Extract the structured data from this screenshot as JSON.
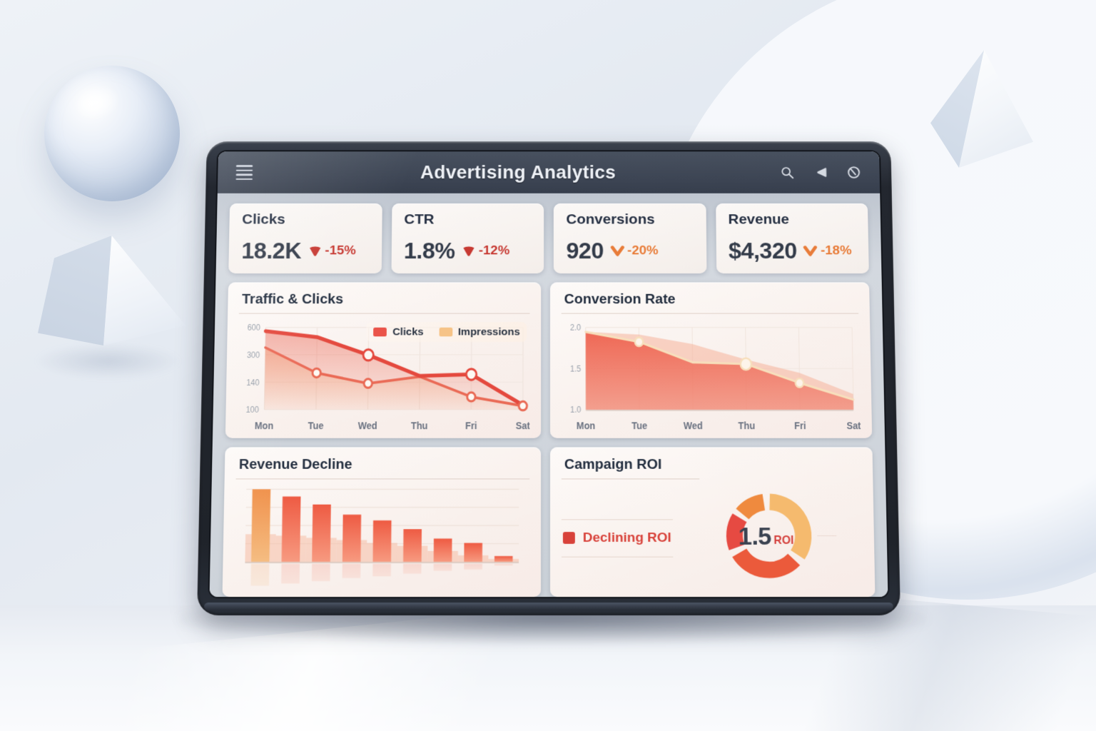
{
  "header": {
    "title": "Advertising Analytics",
    "icons": [
      "menu",
      "search",
      "notifications",
      "account"
    ]
  },
  "kpis": [
    {
      "label": "Clicks",
      "value": "18.2K",
      "delta": "-15%",
      "delta_color": "#c73a33",
      "arrow_style": "triangle"
    },
    {
      "label": "CTR",
      "value": "1.8%",
      "delta": "-12%",
      "delta_color": "#c73a33",
      "arrow_style": "triangle"
    },
    {
      "label": "Conversions",
      "value": "920",
      "delta": "-20%",
      "delta_color": "#e87c39",
      "arrow_style": "chevron"
    },
    {
      "label": "Revenue",
      "value": "$4,320",
      "delta": "-18%",
      "delta_color": "#e87c39",
      "arrow_style": "chevron"
    }
  ],
  "chart_data": [
    {
      "type": "line",
      "title": "Traffic & Clicks",
      "x": [
        "Mon",
        "Tue",
        "Wed",
        "Thu",
        "Fri",
        "Sat"
      ],
      "yticks": [
        "600",
        "300",
        "140",
        "100"
      ],
      "grid": true,
      "legend_position": "top-right",
      "series": [
        {
          "name": "Clicks",
          "color": "#e4493e",
          "swatch": "#ea5349",
          "fill": "#ec6a58",
          "values": [
            600,
            560,
            440,
            300,
            310,
            105
          ],
          "markers": [
            2,
            4
          ]
        },
        {
          "name": "Impressions",
          "color": "#e96a55",
          "swatch": "#f6c387",
          "fill": "#f3a96e",
          "values": [
            490,
            320,
            250,
            295,
            160,
            100
          ],
          "markers": [
            1,
            2,
            4,
            5
          ]
        }
      ]
    },
    {
      "type": "area",
      "title": "Conversion Rate",
      "x": [
        "Mon",
        "Tue",
        "Wed",
        "Thu",
        "Fri",
        "Sat"
      ],
      "yticks": [
        "2.0",
        "1.5",
        "1.0"
      ],
      "grid": true,
      "series": [
        {
          "name": "Conversion Rate",
          "color": "#ee6350",
          "line_color": "#f7dfbc",
          "values": [
            2.0,
            1.82,
            1.45,
            1.42,
            1.08,
            0.78
          ],
          "markers": [
            1,
            3,
            4
          ]
        }
      ],
      "ghost_series": {
        "color": "#f5b29a",
        "values": [
          2.0,
          1.95,
          1.78,
          1.5,
          1.26,
          0.88
        ]
      }
    },
    {
      "type": "bar",
      "title": "Revenue Decline",
      "values": [
        100,
        90,
        79,
        65,
        57,
        45,
        32,
        26,
        8
      ],
      "ghost_values": [
        38,
        36,
        33,
        30,
        26,
        22,
        15,
        9,
        4
      ],
      "bar_color": "#ee5b43",
      "bar_color_light": "#f79a80",
      "first_bar_color": "#f0924d",
      "first_bar_color_light": "#f5bd82",
      "ghost_color": "#f5b79e",
      "grid": true
    },
    {
      "type": "donut",
      "title": "Campaign ROI",
      "center_value": "1.5",
      "center_label": "ROI",
      "legend": "Declining ROI",
      "legend_color": "#d8423a",
      "segments": [
        {
          "color": "#ef8a3e",
          "start": -50,
          "sweep": 42
        },
        {
          "color": "#f5ba6e",
          "start": 2,
          "sweep": 122
        },
        {
          "color": "#eb5a3b",
          "start": 134,
          "sweep": 106
        },
        {
          "color": "#e64a42",
          "start": 250,
          "sweep": 52
        }
      ]
    }
  ]
}
